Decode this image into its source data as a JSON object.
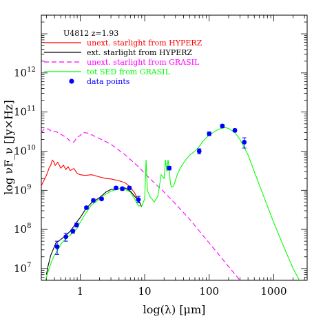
{
  "chart_data": {
    "type": "line",
    "object_label": "U4812 z=1.93",
    "xlabel": "log(λ) [μm]",
    "ylabel": "log νF_ν [Jy×Hz]",
    "xscale": "log",
    "yscale": "log",
    "xlim": [
      0.25,
      3300
    ],
    "ylim": [
      5000000,
      30000000000000
    ],
    "grid": false,
    "legend_position": "top-left",
    "x_tick_labels": [
      {
        "v": 1,
        "t": "1"
      },
      {
        "v": 10,
        "t": "10"
      },
      {
        "v": 100,
        "t": "100"
      },
      {
        "v": 1000,
        "t": "1000"
      }
    ],
    "y_tick_labels": [
      {
        "exp": 7,
        "t": "7"
      },
      {
        "exp": 8,
        "t": "8"
      },
      {
        "exp": 9,
        "t": "9"
      },
      {
        "exp": 10,
        "t": "10"
      },
      {
        "exp": 11,
        "t": "11"
      },
      {
        "exp": 12,
        "t": "12"
      }
    ],
    "series": [
      {
        "name": "unext. starlight from HYPERZ",
        "color": "#ff0000",
        "dash": "solid",
        "x": [
          0.25,
          0.3,
          0.33,
          0.35,
          0.37,
          0.39,
          0.41,
          0.45,
          0.5,
          0.55,
          0.6,
          0.65,
          0.7,
          0.8,
          0.9,
          1.0,
          1.2,
          1.5,
          2.0,
          2.5,
          3.0,
          4.0,
          5.0,
          6.0,
          7.0,
          8.0
        ],
        "y": [
          1300000000,
          2400000000,
          3700000000,
          4400000000,
          5900000000,
          5400000000,
          4300000000,
          5200000000,
          3700000000,
          4400000000,
          3400000000,
          4000000000,
          3200000000,
          3600000000,
          2700000000,
          2500000000,
          2400000000,
          2500000000,
          2200000000,
          2000000000,
          1950000000,
          1750000000,
          1550000000,
          1200000000,
          850000000,
          520000000
        ]
      },
      {
        "name": "ext. starlight from HYPERZ",
        "color": "#000000",
        "dash": "solid",
        "x": [
          0.3,
          0.32,
          0.35,
          0.38,
          0.42,
          0.5,
          0.6,
          0.7,
          0.8,
          0.9,
          1.0,
          1.2,
          1.5,
          2.0,
          2.5,
          3.0,
          4.0,
          5.0,
          6.0,
          7.0,
          8.0,
          9.0
        ],
        "y": [
          7000000,
          12000000,
          22000000,
          30000000,
          45000000,
          55000000,
          70000000,
          90000000,
          120000000,
          160000000,
          200000000,
          320000000,
          480000000,
          650000000,
          900000000,
          1050000000,
          1100000000,
          1150000000,
          950000000,
          700000000,
          550000000,
          380000000
        ]
      },
      {
        "name": "unext. starlight from GRASIL",
        "color": "#ff00ff",
        "dash": "dashed",
        "x": [
          0.25,
          0.28,
          0.32,
          0.37,
          0.42,
          0.5,
          0.6,
          0.7,
          0.8,
          0.9,
          1.0,
          1.1,
          1.3,
          1.6,
          2.0,
          3.0,
          5.0,
          8.0,
          12,
          20,
          30,
          50,
          80,
          150,
          300,
          600
        ],
        "y": [
          30000000000,
          38000000000,
          37000000000,
          31000000000,
          32000000000,
          27000000000,
          23000000000,
          18000000000,
          17000000000,
          23000000000,
          25000000000,
          30000000000,
          29000000000,
          25000000000,
          21000000000,
          15000000000,
          8000000000,
          4000000000,
          2000000000,
          900000000,
          450000000,
          180000000,
          70000000,
          20000000,
          5000000,
          1500000
        ]
      },
      {
        "name": "tot SED from GRASIL",
        "color": "#00ff00",
        "dash": "solid",
        "x": [
          0.28,
          0.3,
          0.33,
          0.36,
          0.4,
          0.45,
          0.5,
          0.6,
          0.7,
          0.8,
          0.9,
          1.0,
          1.2,
          1.5,
          2.0,
          2.5,
          3.0,
          4.0,
          5.0,
          6.0,
          7.0,
          8.0,
          9.0,
          10,
          10.5,
          11,
          12,
          13,
          14,
          16,
          18,
          20,
          21,
          22,
          23,
          24,
          25,
          26,
          28,
          30,
          32,
          35,
          40,
          45,
          50,
          60,
          70,
          80,
          100,
          130,
          150,
          180,
          200,
          250,
          300,
          400,
          500,
          700,
          1000,
          1500,
          2000,
          2500,
          3000
        ],
        "y": [
          4000000,
          6000000,
          10000000,
          15000000,
          22000000,
          30000000,
          42000000,
          58000000,
          72000000,
          85000000,
          110000000,
          150000000,
          250000000,
          420000000,
          600000000,
          800000000,
          950000000,
          1100000000,
          1050000000,
          900000000,
          600000000,
          400000000,
          400000000,
          600000000,
          6000000000,
          1000000000,
          700000000,
          600000000,
          500000000,
          700000000,
          2500000000,
          2000000000,
          6000000000,
          3000000000,
          6000000000,
          3500000000,
          1500000000,
          1200000000,
          1300000000,
          1800000000,
          2500000000,
          3500000000,
          5000000000,
          6500000000,
          8000000000,
          10000000000,
          13000000000,
          18000000000,
          26000000000,
          34000000000,
          38000000000,
          40000000000,
          38000000000,
          30000000000,
          20000000000,
          8000000000,
          3000000000,
          700000000,
          150000000,
          30000000,
          10000000,
          5000000,
          3000000
        ]
      }
    ],
    "data_points": {
      "name": "data points",
      "color": "#0000ff",
      "points": [
        {
          "x": 0.44,
          "y": 36000000,
          "ylo": 23000000,
          "yhi": 50000000
        },
        {
          "x": 0.6,
          "y": 65000000,
          "ylo": 50000000,
          "yhi": 80000000
        },
        {
          "x": 0.77,
          "y": 90000000,
          "ylo": 80000000,
          "yhi": 100000000
        },
        {
          "x": 0.88,
          "y": 130000000,
          "ylo": 115000000,
          "yhi": 145000000
        },
        {
          "x": 1.25,
          "y": 360000000,
          "ylo": 330000000,
          "yhi": 390000000
        },
        {
          "x": 1.6,
          "y": 550000000,
          "ylo": 500000000,
          "yhi": 600000000
        },
        {
          "x": 2.15,
          "y": 600000000,
          "ylo": 560000000,
          "yhi": 650000000
        },
        {
          "x": 3.6,
          "y": 1150000000,
          "ylo": 1050000000,
          "yhi": 1250000000
        },
        {
          "x": 4.5,
          "y": 1100000000,
          "ylo": 1000000000,
          "yhi": 1200000000
        },
        {
          "x": 5.8,
          "y": 1150000000,
          "ylo": 1050000000,
          "yhi": 1250000000
        },
        {
          "x": 8.0,
          "y": 580000000,
          "ylo": 480000000,
          "yhi": 700000000
        },
        {
          "x": 24,
          "y": 3700000000,
          "ylo": 3300000000,
          "yhi": 4100000000
        },
        {
          "x": 70,
          "y": 10000000000,
          "ylo": 8500000000,
          "yhi": 11500000000
        },
        {
          "x": 100,
          "y": 28000000000,
          "ylo": 25000000000,
          "yhi": 31000000000
        },
        {
          "x": 160,
          "y": 44000000000,
          "ylo": 40000000000,
          "yhi": 48000000000
        },
        {
          "x": 250,
          "y": 34000000000,
          "ylo": 31000000000,
          "yhi": 37000000000
        },
        {
          "x": 350,
          "y": 17000000000,
          "ylo": 12000000000,
          "yhi": 22000000000
        }
      ]
    }
  }
}
